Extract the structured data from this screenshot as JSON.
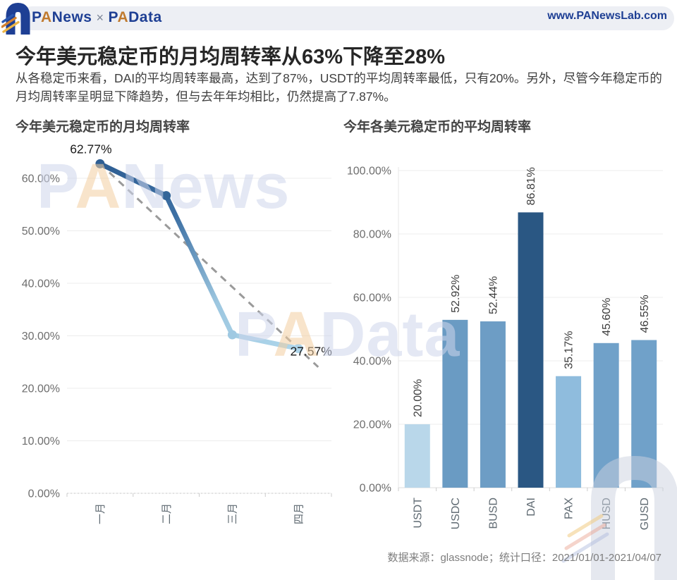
{
  "header": {
    "brand_left_p": "P",
    "brand_left_a": "A",
    "brand_left_rest": "News",
    "brand_sep": "×",
    "brand_right_p": "P",
    "brand_right_a": "A",
    "brand_right_rest": "Data",
    "website": "www.PANewsLab.com"
  },
  "main_title": "今年美元稳定币的月均周转率从63%下降至28%",
  "subtitle": "从各稳定币来看，DAI的平均周转率最高，达到了87%，USDT的平均周转率最低，只有20%。另外，尽管今年稳定币的月均周转率呈明显下降趋势，但与去年年均相比，仍然提高了7.87%。",
  "footer": {
    "source": "数据来源：glassnode；统计口径：2021/01/01-2021/04/07"
  },
  "watermarks": {
    "left_p": "P",
    "left_a": "A",
    "left_rest": "News",
    "center_p": "P",
    "center_a": "A",
    "center_rest": "Data"
  },
  "colors": {
    "brand_blue": "#1e3f94",
    "brand_orange": "#c07a2e",
    "grid": "#ececec",
    "axis_text": "#6e6e6e",
    "category_text": "#5f6a72",
    "trend_gray": "#9a9a9a"
  },
  "chart_data": [
    {
      "type": "line",
      "title": "今年美元稳定币的月均周转率",
      "categories": [
        "一月",
        "二月",
        "三月",
        "四月"
      ],
      "values": [
        62.77,
        56.7,
        30.2,
        27.57
      ],
      "point_labels": {
        "first": "62.77%",
        "last": "27.57%"
      },
      "yticks": [
        "60.00%",
        "50.00%",
        "40.00%",
        "30.00%",
        "20.00%",
        "10.00%",
        "0.00%"
      ],
      "ylim": [
        0,
        67
      ],
      "grid": true,
      "legend": "none",
      "trendline": "dashed straight line from first point through last point",
      "line_gradient": [
        "#2e5e93",
        "#3c6fa3",
        "#9dc7e0",
        "#aed6eb"
      ],
      "point_colors": [
        "#2e5e93",
        "#336699",
        "#9fc9e2",
        "#aed5ea"
      ]
    },
    {
      "type": "bar",
      "title": "今年各美元稳定币的平均周转率",
      "categories": [
        "USDT",
        "USDC",
        "BUSD",
        "DAI",
        "PAX",
        "HUSD",
        "GUSD"
      ],
      "values": [
        20.0,
        52.92,
        52.44,
        86.81,
        35.17,
        45.6,
        46.55
      ],
      "bar_labels": [
        "20.00%",
        "52.92%",
        "52.44%",
        "86.81%",
        "35.17%",
        "45.60%",
        "46.55%"
      ],
      "bar_colors": [
        "#b9d7ea",
        "#6a9bc3",
        "#6d9dc5",
        "#2a5783",
        "#8fbcdd",
        "#70a1c9",
        "#70a1c9"
      ],
      "yticks": [
        "100.00%",
        "80.00%",
        "60.00%",
        "40.00%",
        "20.00%",
        "0.00%"
      ],
      "ylim": [
        0,
        105
      ],
      "grid": true,
      "legend": "none"
    }
  ]
}
